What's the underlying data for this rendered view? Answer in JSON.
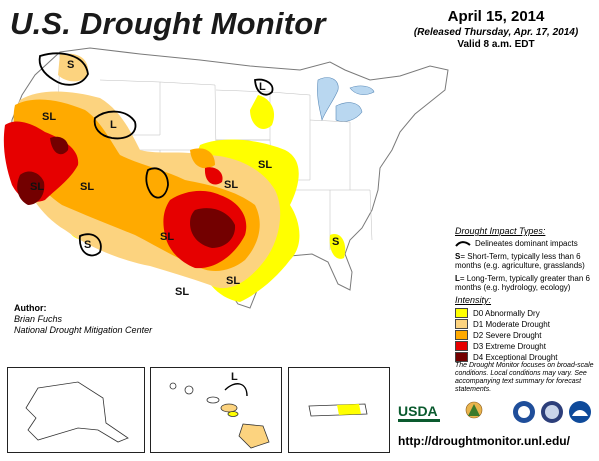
{
  "header": {
    "title": "U.S. Drought Monitor",
    "date": "April 15, 2014",
    "released": "(Released Thursday, Apr. 17, 2014)",
    "valid": "Valid 8 a.m. EDT"
  },
  "map_labels": [
    "S",
    "SL",
    "L",
    "SL",
    "SL",
    "S",
    "SL",
    "SL",
    "SL",
    "SL",
    "SL",
    "S",
    "L"
  ],
  "legend": {
    "impact_header": "Drought Impact Types:",
    "delineates": "Delineates dominant impacts",
    "short_term_key": "S",
    "short_term_text": "= Short-Term, typically less than 6 months (e.g. agriculture, grasslands)",
    "long_term_key": "L",
    "long_term_text": "= Long-Term, typically greater than 6 months (e.g. hydrology, ecology)",
    "intensity_header": "Intensity:",
    "categories": [
      {
        "label": "D0 Abnormally Dry",
        "color": "#ffff00"
      },
      {
        "label": "D1 Moderate Drought",
        "color": "#fcd37f"
      },
      {
        "label": "D2 Severe Drought",
        "color": "#ffaa00"
      },
      {
        "label": "D3 Extreme Drought",
        "color": "#e60000"
      },
      {
        "label": "D4 Exceptional Drought",
        "color": "#730000"
      }
    ],
    "note": "The Drought Monitor focuses on broad-scale conditions. Local conditions may vary. See accompanying text summary for forecast statements."
  },
  "author": {
    "label": "Author:",
    "name": "Brian Fuchs",
    "org": "National Drought Mitigation Center"
  },
  "inset_labels": {
    "hawaii": "L"
  },
  "logos": {
    "usda": "USDA"
  },
  "url": "http://droughtmonitor.unl.edu/"
}
